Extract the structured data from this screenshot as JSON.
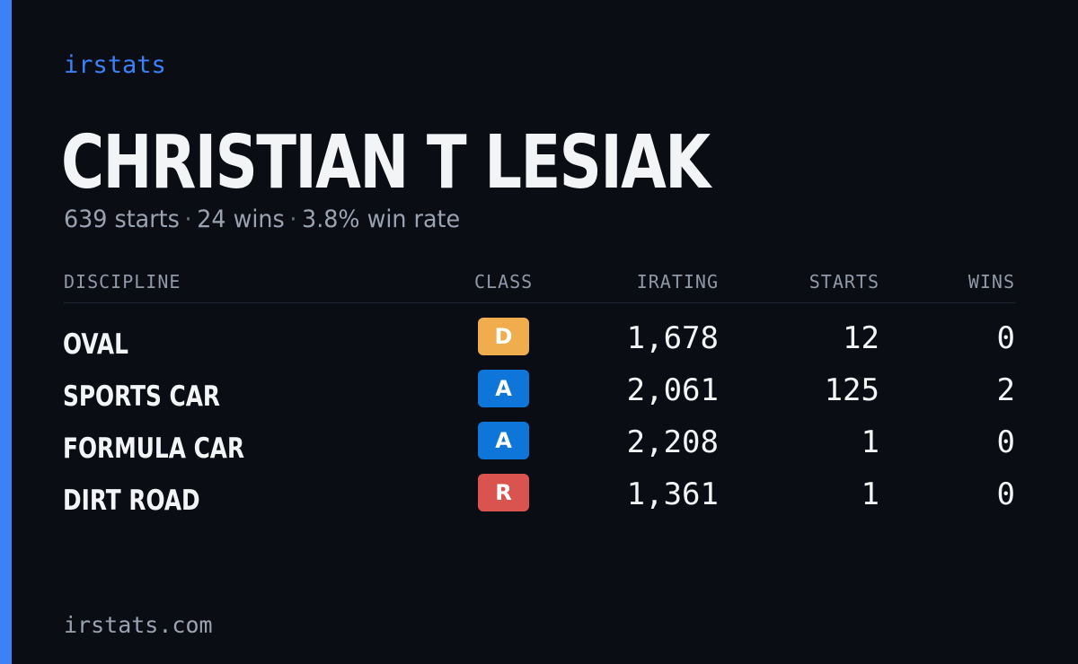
{
  "brand": "irstats",
  "driver": {
    "name": "CHRISTIAN T LESIAK",
    "starts_text": "639 starts",
    "separator": "·",
    "wins_text": "24 wins",
    "win_rate_text": "3.8% win rate"
  },
  "table": {
    "headers": {
      "discipline": "DISCIPLINE",
      "class": "CLASS",
      "irating": "IRATING",
      "starts": "STARTS",
      "wins": "WINS"
    },
    "rows": [
      {
        "discipline": "OVAL",
        "class": "D",
        "class_color": "#f0ad4e",
        "irating": "1,678",
        "starts": "12",
        "wins": "0"
      },
      {
        "discipline": "SPORTS CAR",
        "class": "A",
        "class_color": "#0e76d8",
        "irating": "2,061",
        "starts": "125",
        "wins": "2"
      },
      {
        "discipline": "FORMULA CAR",
        "class": "A",
        "class_color": "#0e76d8",
        "irating": "2,208",
        "starts": "1",
        "wins": "0"
      },
      {
        "discipline": "DIRT ROAD",
        "class": "R",
        "class_color": "#d9534f",
        "irating": "1,361",
        "starts": "1",
        "wins": "0"
      }
    ]
  },
  "footer": "irstats.com",
  "colors": {
    "background": "#0a0d14",
    "accent": "#3b82f6",
    "text": "#f3f4f6",
    "muted": "#9aa3b2"
  }
}
